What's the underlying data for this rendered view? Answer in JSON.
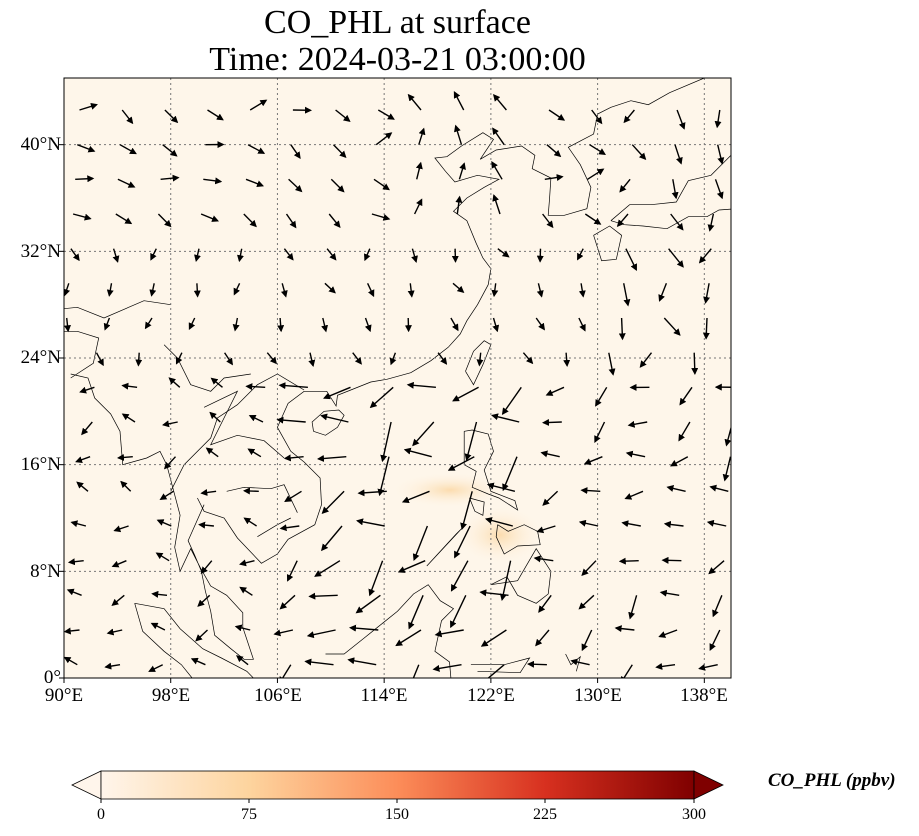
{
  "title": {
    "line1": "CO_PHL at surface",
    "line2": "Time: 2024-03-21 03:00:00"
  },
  "map": {
    "lon_range": [
      90,
      140
    ],
    "lat_range": [
      0,
      45
    ],
    "lat_ticks": [
      "0°",
      "8°N",
      "16°N",
      "24°N",
      "32°N",
      "40°N"
    ],
    "lon_ticks": [
      "90°E",
      "98°E",
      "106°E",
      "114°E",
      "122°E",
      "130°E",
      "138°E"
    ],
    "gridlines": true,
    "background_color": "#fef6ea",
    "wind_vectors": "north-easterly trade winds over South China Sea, westerly flow over northern Asia"
  },
  "colorbar": {
    "label": "CO_PHL (ppbv)",
    "ticks": [
      "0",
      "75",
      "150",
      "225",
      "300"
    ],
    "range": [
      0,
      300
    ],
    "colormap": [
      "#fff5eb",
      "#fdd49e",
      "#fc8d59",
      "#d7301f",
      "#7f0000"
    ],
    "extend": "both"
  }
}
